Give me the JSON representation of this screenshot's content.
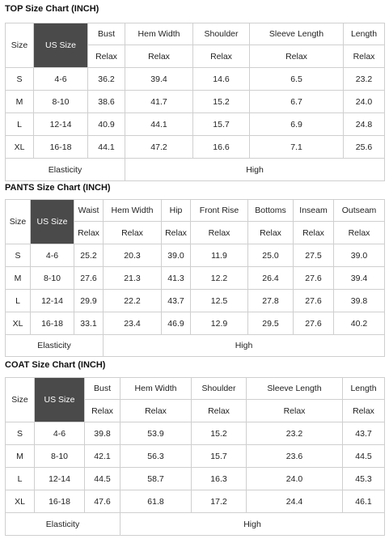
{
  "top": {
    "title": "TOP Size Chart (INCH)",
    "size_label": "Size",
    "us_size_label": "US Size",
    "headers": [
      "Bust",
      "Hem Width",
      "Shoulder",
      "Sleeve Length",
      "Length"
    ],
    "sub": [
      "Relax",
      "Relax",
      "Relax",
      "Relax",
      "Relax"
    ],
    "rows": [
      {
        "size": "S",
        "us": "4-6",
        "vals": [
          "36.2",
          "39.4",
          "14.6",
          "6.5",
          "23.2"
        ]
      },
      {
        "size": "M",
        "us": "8-10",
        "vals": [
          "38.6",
          "41.7",
          "15.2",
          "6.7",
          "24.0"
        ]
      },
      {
        "size": "L",
        "us": "12-14",
        "vals": [
          "40.9",
          "44.1",
          "15.7",
          "6.9",
          "24.8"
        ]
      },
      {
        "size": "XL",
        "us": "16-18",
        "vals": [
          "44.1",
          "47.2",
          "16.6",
          "7.1",
          "25.6"
        ]
      }
    ],
    "elasticity_label": "Elasticity",
    "elasticity_value": "High"
  },
  "pants": {
    "title": "PANTS Size Chart (INCH)",
    "size_label": "Size",
    "us_size_label": "US Size",
    "headers": [
      "Waist",
      "Hem Width",
      "Hip",
      "Front Rise",
      "Bottoms",
      "Inseam",
      "Outseam"
    ],
    "sub": [
      "Relax",
      "Relax",
      "Relax",
      "Relax",
      "Relax",
      "Relax",
      "Relax"
    ],
    "rows": [
      {
        "size": "S",
        "us": "4-6",
        "vals": [
          "25.2",
          "20.3",
          "39.0",
          "11.9",
          "25.0",
          "27.5",
          "39.0"
        ]
      },
      {
        "size": "M",
        "us": "8-10",
        "vals": [
          "27.6",
          "21.3",
          "41.3",
          "12.2",
          "26.4",
          "27.6",
          "39.4"
        ]
      },
      {
        "size": "L",
        "us": "12-14",
        "vals": [
          "29.9",
          "22.2",
          "43.7",
          "12.5",
          "27.8",
          "27.6",
          "39.8"
        ]
      },
      {
        "size": "XL",
        "us": "16-18",
        "vals": [
          "33.1",
          "23.4",
          "46.9",
          "12.9",
          "29.5",
          "27.6",
          "40.2"
        ]
      }
    ],
    "elasticity_label": "Elasticity",
    "elasticity_value": "High"
  },
  "coat": {
    "title": "COAT Size Chart (INCH)",
    "size_label": "Size",
    "us_size_label": "US Size",
    "headers": [
      "Bust",
      "Hem Width",
      "Shoulder",
      "Sleeve Length",
      "Length"
    ],
    "sub": [
      "Relax",
      "Relax",
      "Relax",
      "Relax",
      "Relax"
    ],
    "rows": [
      {
        "size": "S",
        "us": "4-6",
        "vals": [
          "39.8",
          "53.9",
          "15.2",
          "23.2",
          "43.7"
        ]
      },
      {
        "size": "M",
        "us": "8-10",
        "vals": [
          "42.1",
          "56.3",
          "15.7",
          "23.6",
          "44.5"
        ]
      },
      {
        "size": "L",
        "us": "12-14",
        "vals": [
          "44.5",
          "58.7",
          "16.3",
          "24.0",
          "45.3"
        ]
      },
      {
        "size": "XL",
        "us": "16-18",
        "vals": [
          "47.6",
          "61.8",
          "17.2",
          "24.4",
          "46.1"
        ]
      }
    ],
    "elasticity_label": "Elasticity",
    "elasticity_value": "High"
  }
}
